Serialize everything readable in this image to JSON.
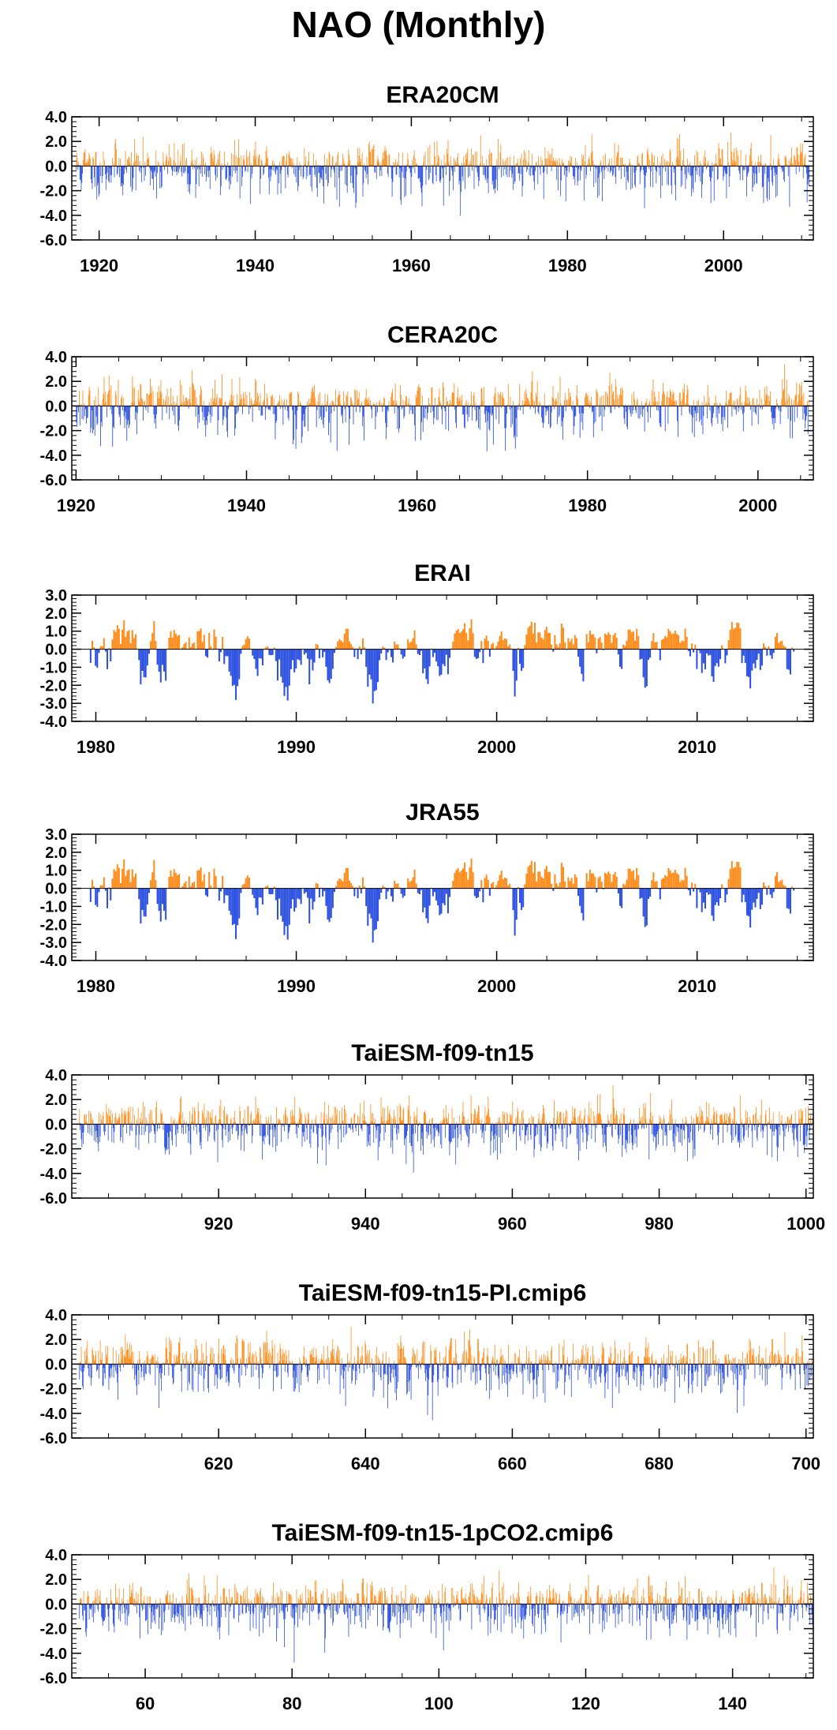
{
  "page": {
    "title": "NAO (Monthly)"
  },
  "colors": {
    "positive": "#ff8c1a",
    "negative": "#2a4fe0",
    "axis": "#000000",
    "background": "#ffffff"
  },
  "chart_data": [
    {
      "type": "bar",
      "title": "ERA20CM",
      "xlabel": "",
      "ylabel": "",
      "xlim": [
        1916.5,
        2011.5
      ],
      "ylim": [
        -6.0,
        4.0
      ],
      "yticks": [
        4.0,
        2.0,
        0.0,
        -2.0,
        -4.0,
        -6.0
      ],
      "ytick_labels": [
        "4.0",
        "2.0",
        "0.0",
        "-2.0",
        "-4.0",
        "-6.0"
      ],
      "xticks": [
        1920,
        1940,
        1960,
        1980,
        2000
      ],
      "xtick_labels": [
        "1920",
        "1940",
        "1960",
        "1980",
        "2000"
      ],
      "series": {
        "start": 1917,
        "end": 2011,
        "seed": 11,
        "amp_pos": 1.3,
        "amp_neg": 1.6,
        "persist": 0.25
      }
    },
    {
      "type": "bar",
      "title": "CERA20C",
      "xlabel": "",
      "ylabel": "",
      "xlim": [
        1919.5,
        2006.5
      ],
      "ylim": [
        -6.0,
        4.0
      ],
      "yticks": [
        4.0,
        2.0,
        0.0,
        -2.0,
        -4.0,
        -6.0
      ],
      "ytick_labels": [
        "4.0",
        "2.0",
        "0.0",
        "-2.0",
        "-4.0",
        "-6.0"
      ],
      "xticks": [
        1920,
        1940,
        1960,
        1980,
        2000
      ],
      "xtick_labels": [
        "1920",
        "1940",
        "1960",
        "1980",
        "2000"
      ],
      "series": {
        "start": 1920,
        "end": 2006,
        "seed": 23,
        "amp_pos": 1.4,
        "amp_neg": 1.6,
        "persist": 0.3
      }
    },
    {
      "type": "bar",
      "title": "ERAI",
      "xlabel": "",
      "ylabel": "",
      "xlim": [
        1978.8,
        2015.8
      ],
      "ylim": [
        -4.0,
        3.0
      ],
      "yticks": [
        3.0,
        2.0,
        1.0,
        0.0,
        -1.0,
        -2.0,
        -3.0,
        -4.0
      ],
      "ytick_labels": [
        "3.0",
        "2.0",
        "1.0",
        "0.0",
        "-1.0",
        "-2.0",
        "-3.0",
        "-4.0"
      ],
      "xticks": [
        1980,
        1990,
        2000,
        2010
      ],
      "xtick_labels": [
        "1980",
        "1990",
        "2000",
        "2010"
      ],
      "series": {
        "start": 1979.7,
        "end": 2014.9,
        "seed": 37,
        "amp_pos": 1.2,
        "amp_neg": 1.5,
        "persist": 0.82
      }
    },
    {
      "type": "bar",
      "title": "JRA55",
      "xlabel": "",
      "ylabel": "",
      "xlim": [
        1978.8,
        2015.8
      ],
      "ylim": [
        -4.0,
        3.0
      ],
      "yticks": [
        3.0,
        2.0,
        1.0,
        0.0,
        -1.0,
        -2.0,
        -3.0,
        -4.0
      ],
      "ytick_labels": [
        "3.0",
        "2.0",
        "1.0",
        "0.0",
        "-1.0",
        "-2.0",
        "-3.0",
        "-4.0"
      ],
      "xticks": [
        1980,
        1990,
        2000,
        2010
      ],
      "xtick_labels": [
        "1980",
        "1990",
        "2000",
        "2010"
      ],
      "series": {
        "start": 1979.7,
        "end": 2014.9,
        "seed": 37,
        "amp_pos": 1.2,
        "amp_neg": 1.5,
        "persist": 0.82
      }
    },
    {
      "type": "bar",
      "title": "TaiESM-f09-tn15",
      "xlabel": "",
      "ylabel": "",
      "xlim": [
        900,
        1001
      ],
      "ylim": [
        -6.0,
        4.0
      ],
      "yticks": [
        4.0,
        2.0,
        0.0,
        -2.0,
        -4.0,
        -6.0
      ],
      "ytick_labels": [
        "4.0",
        "2.0",
        "0.0",
        "-2.0",
        "-4.0",
        "-6.0"
      ],
      "xticks": [
        920,
        940,
        960,
        980,
        1000
      ],
      "xtick_labels": [
        "920",
        "940",
        "960",
        "980",
        "1000"
      ],
      "series": {
        "start": 901,
        "end": 1001,
        "seed": 51,
        "amp_pos": 1.3,
        "amp_neg": 1.6,
        "persist": 0.25
      }
    },
    {
      "type": "bar",
      "title": "TaiESM-f09-tn15-PI.cmip6",
      "xlabel": "",
      "ylabel": "",
      "xlim": [
        600,
        701
      ],
      "ylim": [
        -6.0,
        4.0
      ],
      "yticks": [
        4.0,
        2.0,
        0.0,
        -2.0,
        -4.0,
        -6.0
      ],
      "ytick_labels": [
        "4.0",
        "2.0",
        "0.0",
        "-2.0",
        "-4.0",
        "-6.0"
      ],
      "xticks": [
        620,
        640,
        660,
        680,
        700
      ],
      "xtick_labels": [
        "620",
        "640",
        "660",
        "680",
        "700"
      ],
      "series": {
        "start": 601,
        "end": 701,
        "seed": 67,
        "amp_pos": 1.3,
        "amp_neg": 1.6,
        "persist": 0.25
      }
    },
    {
      "type": "bar",
      "title": "TaiESM-f09-tn15-1pCO2.cmip6",
      "xlabel": "",
      "ylabel": "",
      "xlim": [
        50,
        151
      ],
      "ylim": [
        -6.0,
        4.0
      ],
      "yticks": [
        4.0,
        2.0,
        0.0,
        -2.0,
        -4.0,
        -6.0
      ],
      "ytick_labels": [
        "4.0",
        "2.0",
        "0.0",
        "-2.0",
        "-4.0",
        "-6.0"
      ],
      "xticks": [
        60,
        80,
        100,
        120,
        140
      ],
      "xtick_labels": [
        "60",
        "80",
        "100",
        "120",
        "140"
      ],
      "series": {
        "start": 51,
        "end": 151,
        "seed": 89,
        "amp_pos": 1.3,
        "amp_neg": 1.6,
        "persist": 0.25
      }
    }
  ]
}
